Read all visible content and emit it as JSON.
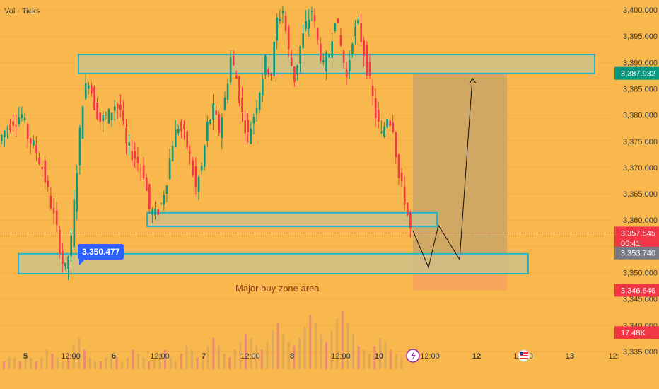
{
  "header": {
    "indicator_label": "Vol · Ticks"
  },
  "chart_data": {
    "type": "candlestick",
    "instrument_overlay": "price-and-volume",
    "y_ticks": [
      "3,400.000",
      "3,395.000",
      "3,390.000",
      "3,385.000",
      "3,380.000",
      "3,375.000",
      "3,370.000",
      "3,365.000",
      "3,360.000",
      "3,355.000",
      "3,350.000",
      "3,345.000",
      "3,340.000",
      "3,335.000"
    ],
    "y_tick_values": [
      3400,
      3395,
      3390,
      3385,
      3380,
      3375,
      3370,
      3365,
      3360,
      3355,
      3350,
      3345,
      3340,
      3335
    ],
    "ylim": [
      3333.5,
      3401.0
    ],
    "x_ticks": [
      {
        "label": "5",
        "day": true
      },
      {
        "label": "12:00",
        "day": false
      },
      {
        "label": "6",
        "day": true
      },
      {
        "label": "12:00",
        "day": false
      },
      {
        "label": "7",
        "day": true
      },
      {
        "label": "12:00",
        "day": false
      },
      {
        "label": "8",
        "day": true
      },
      {
        "label": "12:00",
        "day": false
      },
      {
        "label": "10",
        "day": true
      },
      {
        "label": "12:00",
        "day": false
      },
      {
        "label": "12",
        "day": true
      },
      {
        "label": "12:00",
        "day": false
      },
      {
        "label": "13",
        "day": true
      },
      {
        "label": "12:",
        "day": false
      }
    ],
    "price_path_points": [
      [
        0,
        3375
      ],
      [
        2,
        3377
      ],
      [
        5,
        3379
      ],
      [
        8,
        3380
      ],
      [
        10,
        3376
      ],
      [
        13,
        3373
      ],
      [
        15,
        3370
      ],
      [
        18,
        3363
      ],
      [
        20,
        3358
      ],
      [
        22,
        3352
      ],
      [
        23,
        3350.5
      ],
      [
        25,
        3356
      ],
      [
        27,
        3370
      ],
      [
        29,
        3383
      ],
      [
        31,
        3387
      ],
      [
        33,
        3382
      ],
      [
        35,
        3379
      ],
      [
        38,
        3380
      ],
      [
        40,
        3382
      ],
      [
        42,
        3381
      ],
      [
        44,
        3374
      ],
      [
        47,
        3372
      ],
      [
        50,
        3369
      ],
      [
        52,
        3362
      ],
      [
        54,
        3361
      ],
      [
        56,
        3363
      ],
      [
        58,
        3368
      ],
      [
        60,
        3375
      ],
      [
        62,
        3378
      ],
      [
        64,
        3376
      ],
      [
        66,
        3372
      ],
      [
        68,
        3366
      ],
      [
        70,
        3370
      ],
      [
        72,
        3378
      ],
      [
        74,
        3381
      ],
      [
        76,
        3377
      ],
      [
        78,
        3383
      ],
      [
        80,
        3391
      ],
      [
        82,
        3387
      ],
      [
        84,
        3380
      ],
      [
        86,
        3376
      ],
      [
        88,
        3380
      ],
      [
        90,
        3385
      ],
      [
        92,
        3390
      ],
      [
        94,
        3388
      ],
      [
        96,
        3398
      ],
      [
        98,
        3400
      ],
      [
        100,
        3392
      ],
      [
        102,
        3387
      ],
      [
        104,
        3393
      ],
      [
        106,
        3397
      ],
      [
        108,
        3400
      ],
      [
        110,
        3394
      ],
      [
        112,
        3389
      ],
      [
        114,
        3392
      ],
      [
        116,
        3399
      ],
      [
        118,
        3393
      ],
      [
        120,
        3387
      ],
      [
        122,
        3395
      ],
      [
        124,
        3397
      ],
      [
        126,
        3392
      ],
      [
        128,
        3386
      ],
      [
        130,
        3380
      ],
      [
        132,
        3376
      ],
      [
        134,
        3380
      ],
      [
        136,
        3378
      ],
      [
        138,
        3368
      ],
      [
        140,
        3364
      ],
      [
        142,
        3358
      ]
    ],
    "volume_bars": [
      2,
      3,
      3,
      2,
      4,
      3,
      2,
      3,
      5,
      4,
      3,
      2,
      4,
      6,
      8,
      5,
      3,
      2,
      2,
      3,
      4,
      3,
      2,
      3,
      5,
      4,
      3,
      2,
      3,
      4,
      5,
      3,
      2,
      4,
      6,
      5,
      3,
      4,
      6,
      8,
      6,
      4,
      3,
      5,
      7,
      9,
      8,
      6,
      5,
      7,
      10,
      12,
      9,
      7,
      6,
      8,
      11,
      14,
      12,
      9,
      7,
      10,
      13,
      15,
      12,
      9,
      6,
      5,
      4,
      6,
      8,
      7,
      5,
      4,
      3
    ],
    "zones": [
      {
        "name": "resistance-zone",
        "low": 3387.9,
        "high": 3391.5
      },
      {
        "name": "support-zone",
        "low": 3358.8,
        "high": 3361.4
      },
      {
        "name": "major-buy-zone",
        "low": 3349.8,
        "high": 3353.6
      }
    ],
    "projection_path": [
      3358.0,
      3351.0,
      3359.0,
      3352.5,
      3387.0
    ],
    "position_box": {
      "target": 3387.932,
      "entry": 3353.74,
      "stop": 3346.646
    },
    "callout_label": "3,350.477",
    "annotation": "Major buy zone area",
    "price_tags": [
      {
        "label": "3,387.932",
        "value": 3387.932,
        "color": "#089981"
      },
      {
        "label": "3,357.545",
        "value": 3357.545,
        "color": "#f23645"
      },
      {
        "label": "06:41",
        "value": 3355.6,
        "color": "#f23645"
      },
      {
        "label": "3,353.740",
        "value": 3353.74,
        "color": "#787b86"
      },
      {
        "label": "3,346.646",
        "value": 3346.646,
        "color": "#f23645"
      },
      {
        "label": "17.48K",
        "value": 3338.6,
        "color": "#f23645"
      }
    ],
    "colors": {
      "bull": "#089981",
      "bear": "#f23645",
      "zone_fill": "#c7c38f",
      "zone_stroke": "#22b5c9",
      "box_profit": "#c2a36c",
      "box_loss": "#f7a25d",
      "bg": "#f9b84e",
      "grid": "#f3ad45"
    }
  }
}
